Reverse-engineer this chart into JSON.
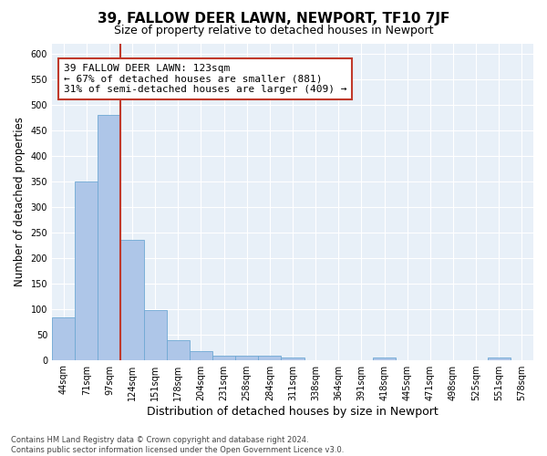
{
  "title": "39, FALLOW DEER LAWN, NEWPORT, TF10 7JF",
  "subtitle": "Size of property relative to detached houses in Newport",
  "xlabel": "Distribution of detached houses by size in Newport",
  "ylabel": "Number of detached properties",
  "categories": [
    "44sqm",
    "71sqm",
    "97sqm",
    "124sqm",
    "151sqm",
    "178sqm",
    "204sqm",
    "231sqm",
    "258sqm",
    "284sqm",
    "311sqm",
    "338sqm",
    "364sqm",
    "391sqm",
    "418sqm",
    "445sqm",
    "471sqm",
    "498sqm",
    "525sqm",
    "551sqm",
    "578sqm"
  ],
  "values": [
    83,
    350,
    480,
    235,
    97,
    38,
    18,
    8,
    8,
    8,
    5,
    0,
    0,
    0,
    5,
    0,
    0,
    0,
    0,
    5,
    0
  ],
  "bar_color": "#aec6e8",
  "bar_edge_color": "#6fa8d4",
  "vline_color": "#c0392b",
  "vline_x_index": 2.5,
  "annotation_text": "39 FALLOW DEER LAWN: 123sqm\n← 67% of detached houses are smaller (881)\n31% of semi-detached houses are larger (409) →",
  "annotation_box_color": "white",
  "annotation_box_edge_color": "#c0392b",
  "ylim": [
    0,
    620
  ],
  "yticks": [
    0,
    50,
    100,
    150,
    200,
    250,
    300,
    350,
    400,
    450,
    500,
    550,
    600
  ],
  "background_color": "#e8f0f8",
  "grid_color": "white",
  "footer_text": "Contains HM Land Registry data © Crown copyright and database right 2024.\nContains public sector information licensed under the Open Government Licence v3.0.",
  "title_fontsize": 11,
  "subtitle_fontsize": 9,
  "xlabel_fontsize": 9,
  "ylabel_fontsize": 8.5,
  "tick_fontsize": 7,
  "annotation_fontsize": 8,
  "footer_fontsize": 6
}
